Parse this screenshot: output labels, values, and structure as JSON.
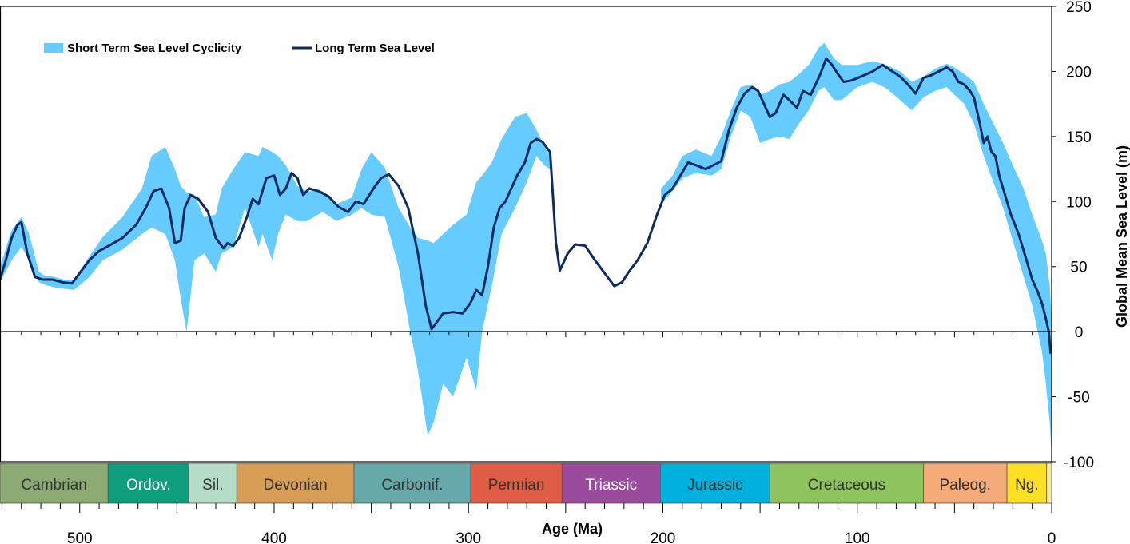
{
  "chart_data": {
    "type": "area",
    "xlabel": "Age (Ma)",
    "ylabel": "Global Mean Sea Level (m)",
    "xlim": [
      541,
      0
    ],
    "ylim": [
      -100,
      250
    ],
    "x_ticks": [
      500,
      400,
      300,
      200,
      100,
      0
    ],
    "y_ticks": [
      250,
      200,
      150,
      100,
      50,
      0,
      -50,
      -100
    ],
    "grid": false,
    "legend_position": "top-left",
    "series": [
      {
        "name": "Short Term Sea Level Cyclicity",
        "type": "band",
        "color": "#66ccff",
        "x": [
          541,
          535,
          530,
          526,
          521,
          518,
          513,
          508,
          503,
          495,
          488,
          478,
          468,
          463,
          456,
          451,
          448,
          445,
          441,
          436,
          430,
          427,
          421,
          415,
          408,
          406,
          401,
          398,
          394,
          388,
          383,
          375,
          368,
          360,
          355,
          350,
          343,
          336,
          330,
          326,
          321,
          318,
          313,
          308,
          301,
          296,
          293,
          288,
          283,
          276,
          270,
          265,
          261,
          258
        ],
        "upper": [
          50,
          78,
          88,
          75,
          46,
          43,
          42,
          40,
          40,
          58,
          73,
          88,
          110,
          135,
          142,
          125,
          112,
          107,
          105,
          88,
          90,
          110,
          125,
          138,
          135,
          142,
          138,
          135,
          128,
          112,
          108,
          108,
          98,
          103,
          125,
          138,
          126,
          95,
          80,
          72,
          70,
          68,
          75,
          82,
          90,
          115,
          120,
          130,
          148,
          165,
          168,
          155,
          143,
          135
        ],
        "lower": [
          38,
          55,
          65,
          55,
          38,
          36,
          34,
          33,
          32,
          42,
          55,
          63,
          75,
          80,
          75,
          55,
          25,
          0,
          55,
          60,
          46,
          60,
          65,
          95,
          65,
          75,
          55,
          75,
          90,
          85,
          85,
          92,
          85,
          90,
          95,
          90,
          88,
          50,
          0,
          -30,
          -80,
          -70,
          -40,
          -50,
          -20,
          -45,
          0,
          35,
          75,
          95,
          115,
          135,
          128,
          125
        ]
      },
      {
        "name": "Short Term Sea Level Cyclicity",
        "type": "band",
        "color": "#66ccff",
        "x": [
          201,
          195,
          190,
          183,
          175,
          170,
          165,
          160,
          155,
          150,
          145,
          140,
          135,
          130,
          125,
          120,
          117,
          112,
          108,
          100,
          92,
          85,
          78,
          72,
          66,
          60,
          54,
          50,
          45,
          40,
          35,
          30,
          25,
          20,
          15,
          10,
          5,
          3,
          1,
          0
        ],
        "upper": [
          110,
          120,
          135,
          140,
          135,
          150,
          170,
          188,
          190,
          182,
          185,
          190,
          192,
          198,
          205,
          218,
          222,
          210,
          205,
          205,
          208,
          205,
          200,
          192,
          196,
          202,
          206,
          203,
          198,
          192,
          175,
          160,
          145,
          128,
          112,
          90,
          70,
          60,
          35,
          10
        ],
        "lower": [
          98,
          108,
          118,
          122,
          120,
          125,
          150,
          170,
          165,
          145,
          148,
          150,
          148,
          160,
          170,
          185,
          188,
          178,
          178,
          188,
          192,
          187,
          178,
          170,
          180,
          185,
          188,
          182,
          175,
          160,
          135,
          115,
          95,
          70,
          45,
          20,
          -15,
          -40,
          -70,
          -95
        ]
      },
      {
        "name": "Long Term Sea Level",
        "type": "line",
        "color": "#0d2b5e",
        "x": [
          541,
          538,
          535,
          532,
          530,
          527,
          523,
          519,
          514,
          509,
          504,
          500,
          495,
          490,
          485,
          478,
          471,
          466,
          462,
          458,
          454,
          451,
          448,
          446,
          443,
          439,
          434,
          430,
          426,
          424,
          421,
          418,
          414,
          411,
          408,
          404,
          400,
          397,
          394,
          391,
          388,
          385,
          382,
          377,
          372,
          367,
          362,
          358,
          354,
          351,
          348,
          345,
          341,
          336,
          331,
          326,
          322,
          319,
          316,
          313,
          308,
          303,
          299,
          296,
          293,
          290,
          287,
          284,
          281,
          278,
          275,
          271,
          268,
          265,
          262,
          260,
          258,
          255,
          253,
          249,
          245,
          240,
          235,
          230,
          225,
          221,
          218,
          213,
          208,
          203,
          199,
          195,
          191,
          187,
          183,
          178,
          174,
          170,
          166,
          162,
          158,
          154,
          151,
          148,
          145,
          142,
          138,
          135,
          131,
          128,
          124,
          119,
          116,
          113,
          110,
          107,
          103,
          98,
          92,
          87,
          82,
          78,
          74,
          70,
          66,
          62,
          58,
          54,
          51,
          48,
          45,
          42,
          40,
          37,
          35,
          33,
          31,
          29,
          27,
          24,
          21,
          17,
          13,
          10,
          7,
          5,
          3,
          1.5,
          0.5
        ],
        "y": [
          40,
          55,
          72,
          82,
          84,
          60,
          42,
          40,
          40,
          38,
          37,
          45,
          55,
          62,
          66,
          72,
          82,
          95,
          108,
          110,
          95,
          68,
          70,
          95,
          105,
          102,
          92,
          72,
          64,
          68,
          66,
          72,
          88,
          102,
          98,
          118,
          120,
          105,
          110,
          122,
          118,
          105,
          110,
          108,
          104,
          96,
          92,
          100,
          98,
          105,
          112,
          118,
          121,
          112,
          95,
          60,
          20,
          2,
          8,
          14,
          15,
          14,
          22,
          32,
          28,
          50,
          80,
          95,
          100,
          110,
          120,
          130,
          145,
          148,
          146,
          142,
          138,
          68,
          47,
          60,
          67,
          66,
          55,
          45,
          35,
          38,
          45,
          55,
          68,
          90,
          105,
          110,
          120,
          130,
          128,
          125,
          128,
          131,
          155,
          172,
          183,
          188,
          185,
          175,
          165,
          168,
          182,
          178,
          172,
          185,
          182,
          198,
          210,
          205,
          198,
          192,
          193,
          196,
          200,
          205,
          200,
          196,
          190,
          183,
          195,
          197,
          200,
          203,
          200,
          192,
          190,
          185,
          180,
          160,
          145,
          150,
          138,
          135,
          120,
          105,
          90,
          75,
          55,
          40,
          30,
          22,
          10,
          0,
          -17
        ]
      }
    ],
    "periods": [
      {
        "name": "Cambrian",
        "start": 541,
        "end": 485.4,
        "color": "#8bab72",
        "text_color": "#333333"
      },
      {
        "name": "Ordov.",
        "start": 485.4,
        "end": 443.8,
        "color": "#0e9d7d",
        "text_color": "#ffffff"
      },
      {
        "name": "Sil.",
        "start": 443.8,
        "end": 419.2,
        "color": "#b5dcc5",
        "text_color": "#333333"
      },
      {
        "name": "Devonian",
        "start": 419.2,
        "end": 358.9,
        "color": "#d89d55",
        "text_color": "#333333"
      },
      {
        "name": "Carbonif.",
        "start": 358.9,
        "end": 298.9,
        "color": "#67a8aa",
        "text_color": "#333333"
      },
      {
        "name": "Permian",
        "start": 298.9,
        "end": 251.9,
        "color": "#e05d45",
        "text_color": "#333333"
      },
      {
        "name": "Triassic",
        "start": 251.9,
        "end": 201.3,
        "color": "#9b4b9e",
        "text_color": "#ffffff"
      },
      {
        "name": "Jurassic",
        "start": 201.3,
        "end": 145,
        "color": "#00b1dd",
        "text_color": "#333333"
      },
      {
        "name": "Cretaceous",
        "start": 145,
        "end": 66,
        "color": "#8ec35d",
        "text_color": "#333333"
      },
      {
        "name": "Paleog.",
        "start": 66,
        "end": 23,
        "color": "#f5ab78",
        "text_color": "#333333"
      },
      {
        "name": "Ng.",
        "start": 23,
        "end": 2.6,
        "color": "#fde023",
        "text_color": "#333333"
      },
      {
        "name": "",
        "start": 2.6,
        "end": 0,
        "color": "#f6ec9b",
        "text_color": "#333333"
      }
    ]
  }
}
